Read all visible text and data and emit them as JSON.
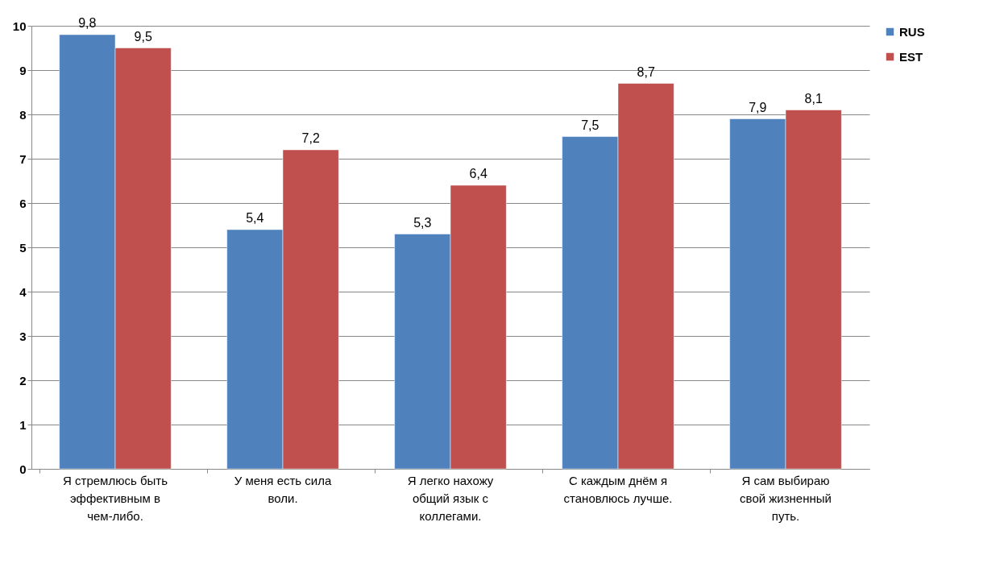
{
  "chart_data": {
    "type": "bar",
    "categories": [
      "Я стремлюсь быть эффективным в чем-либо.",
      "У меня есть сила воли.",
      "Я легко нахожу общий язык с коллегами.",
      "С каждым днём я становлюсь лучше.",
      "Я сам выбираю свой жизненный путь."
    ],
    "series": [
      {
        "name": "RUS",
        "color": "#4f81bd",
        "values": [
          9.8,
          5.4,
          5.3,
          7.5,
          7.9
        ],
        "value_labels": [
          "9,8",
          "5,4",
          "5,3",
          "7,5",
          "7,9"
        ]
      },
      {
        "name": "EST",
        "color": "#c0504d",
        "values": [
          9.5,
          7.2,
          6.4,
          8.7,
          8.1
        ],
        "value_labels": [
          "9,5",
          "7,2",
          "6,4",
          "8,7",
          "8,1"
        ]
      }
    ],
    "ylim": [
      0,
      10
    ],
    "yticks": [
      0,
      1,
      2,
      3,
      4,
      5,
      6,
      7,
      8,
      9,
      10
    ],
    "grid": "y",
    "legend": "right"
  }
}
